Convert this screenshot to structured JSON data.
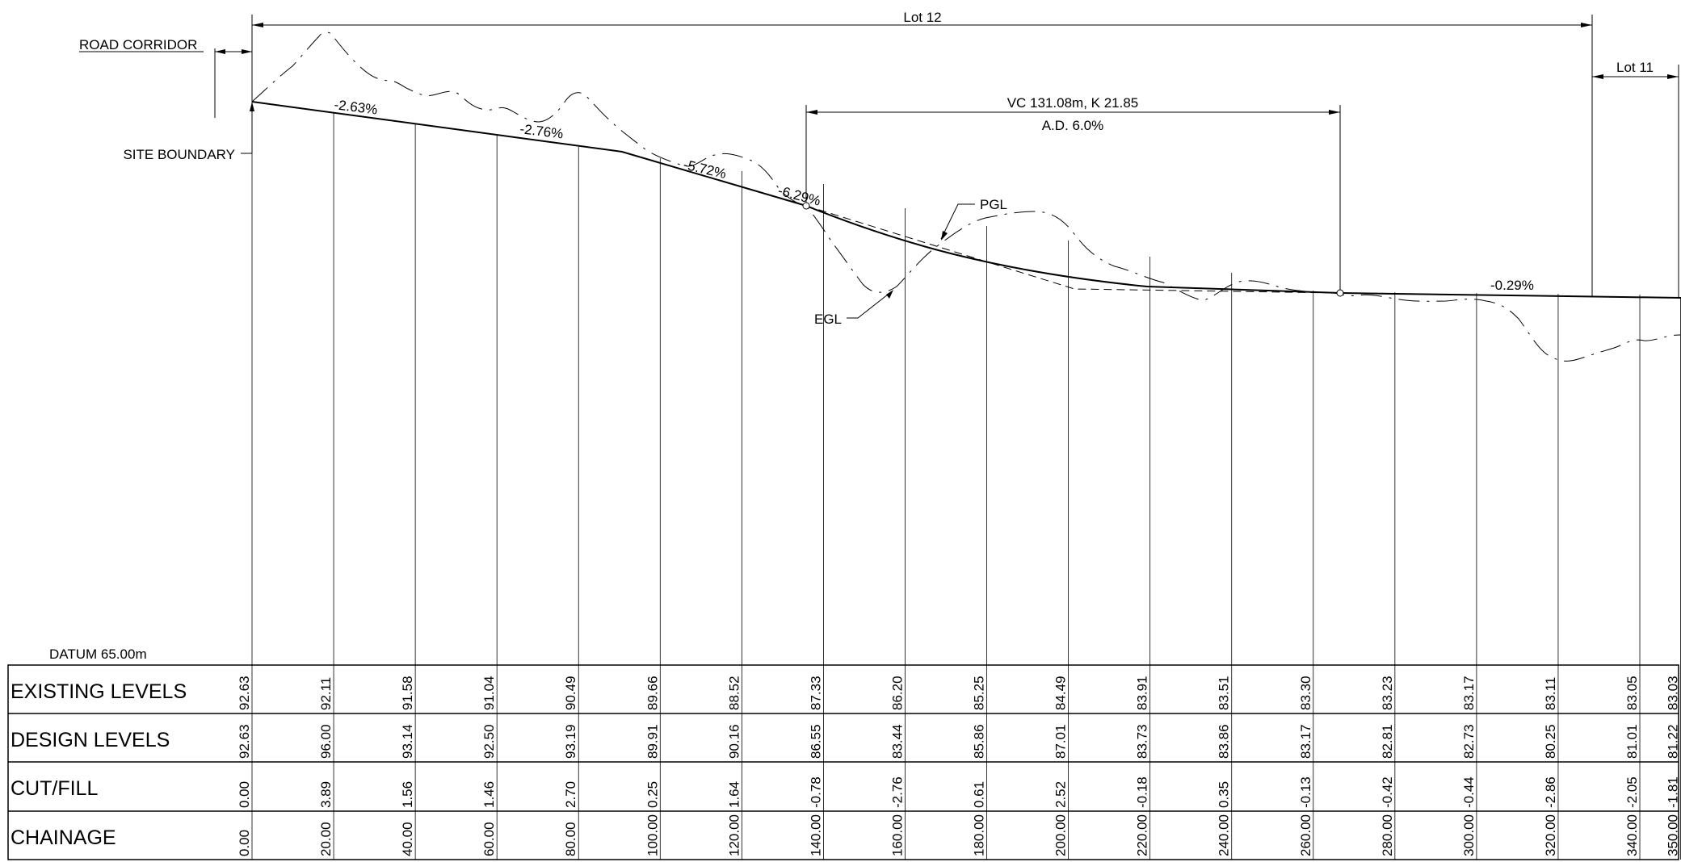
{
  "labels": {
    "road_corridor": "ROAD CORRIDOR",
    "site_boundary": "SITE BOUNDARY",
    "lot12": "Lot 12",
    "lot11": "Lot 11",
    "vc": "VC 131.08m, K 21.85",
    "ad": "A.D. 6.0%",
    "pgl": "PGL",
    "egl": "EGL",
    "datum": "DATUM 65.00m"
  },
  "grades": [
    "-2.63%",
    "-2.76%",
    "-5.72%",
    "-6.29%",
    "-0.29%"
  ],
  "table": {
    "row_labels": [
      "EXISTING LEVELS",
      "DESIGN LEVELS",
      "CUT/FILL",
      "CHAINAGE"
    ],
    "existing_levels": [
      "92.63",
      "92.11",
      "91.58",
      "91.04",
      "90.49",
      "89.66",
      "88.52",
      "87.33",
      "86.20",
      "85.25",
      "84.49",
      "83.91",
      "83.51",
      "83.30",
      "83.23",
      "83.17",
      "83.11",
      "83.05",
      "83.03"
    ],
    "design_levels": [
      "92.63",
      "96.00",
      "93.14",
      "92.50",
      "93.19",
      "89.91",
      "90.16",
      "86.55",
      "83.44",
      "85.86",
      "87.01",
      "83.73",
      "83.86",
      "83.17",
      "82.81",
      "82.73",
      "80.25",
      "81.01",
      "81.22"
    ],
    "cut_fill": [
      "0.00",
      "3.89",
      "1.56",
      "1.46",
      "2.70",
      "0.25",
      "1.64",
      "-0.78",
      "-2.76",
      "0.61",
      "2.52",
      "-0.18",
      "0.35",
      "-0.13",
      "-0.42",
      "-0.44",
      "-2.86",
      "-2.05",
      "-1.81"
    ],
    "chainage": [
      "0.00",
      "20.00",
      "40.00",
      "60.00",
      "80.00",
      "100.00",
      "120.00",
      "140.00",
      "160.00",
      "180.00",
      "200.00",
      "220.00",
      "240.00",
      "260.00",
      "280.00",
      "300.00",
      "320.00",
      "340.00",
      "350.00"
    ]
  }
}
